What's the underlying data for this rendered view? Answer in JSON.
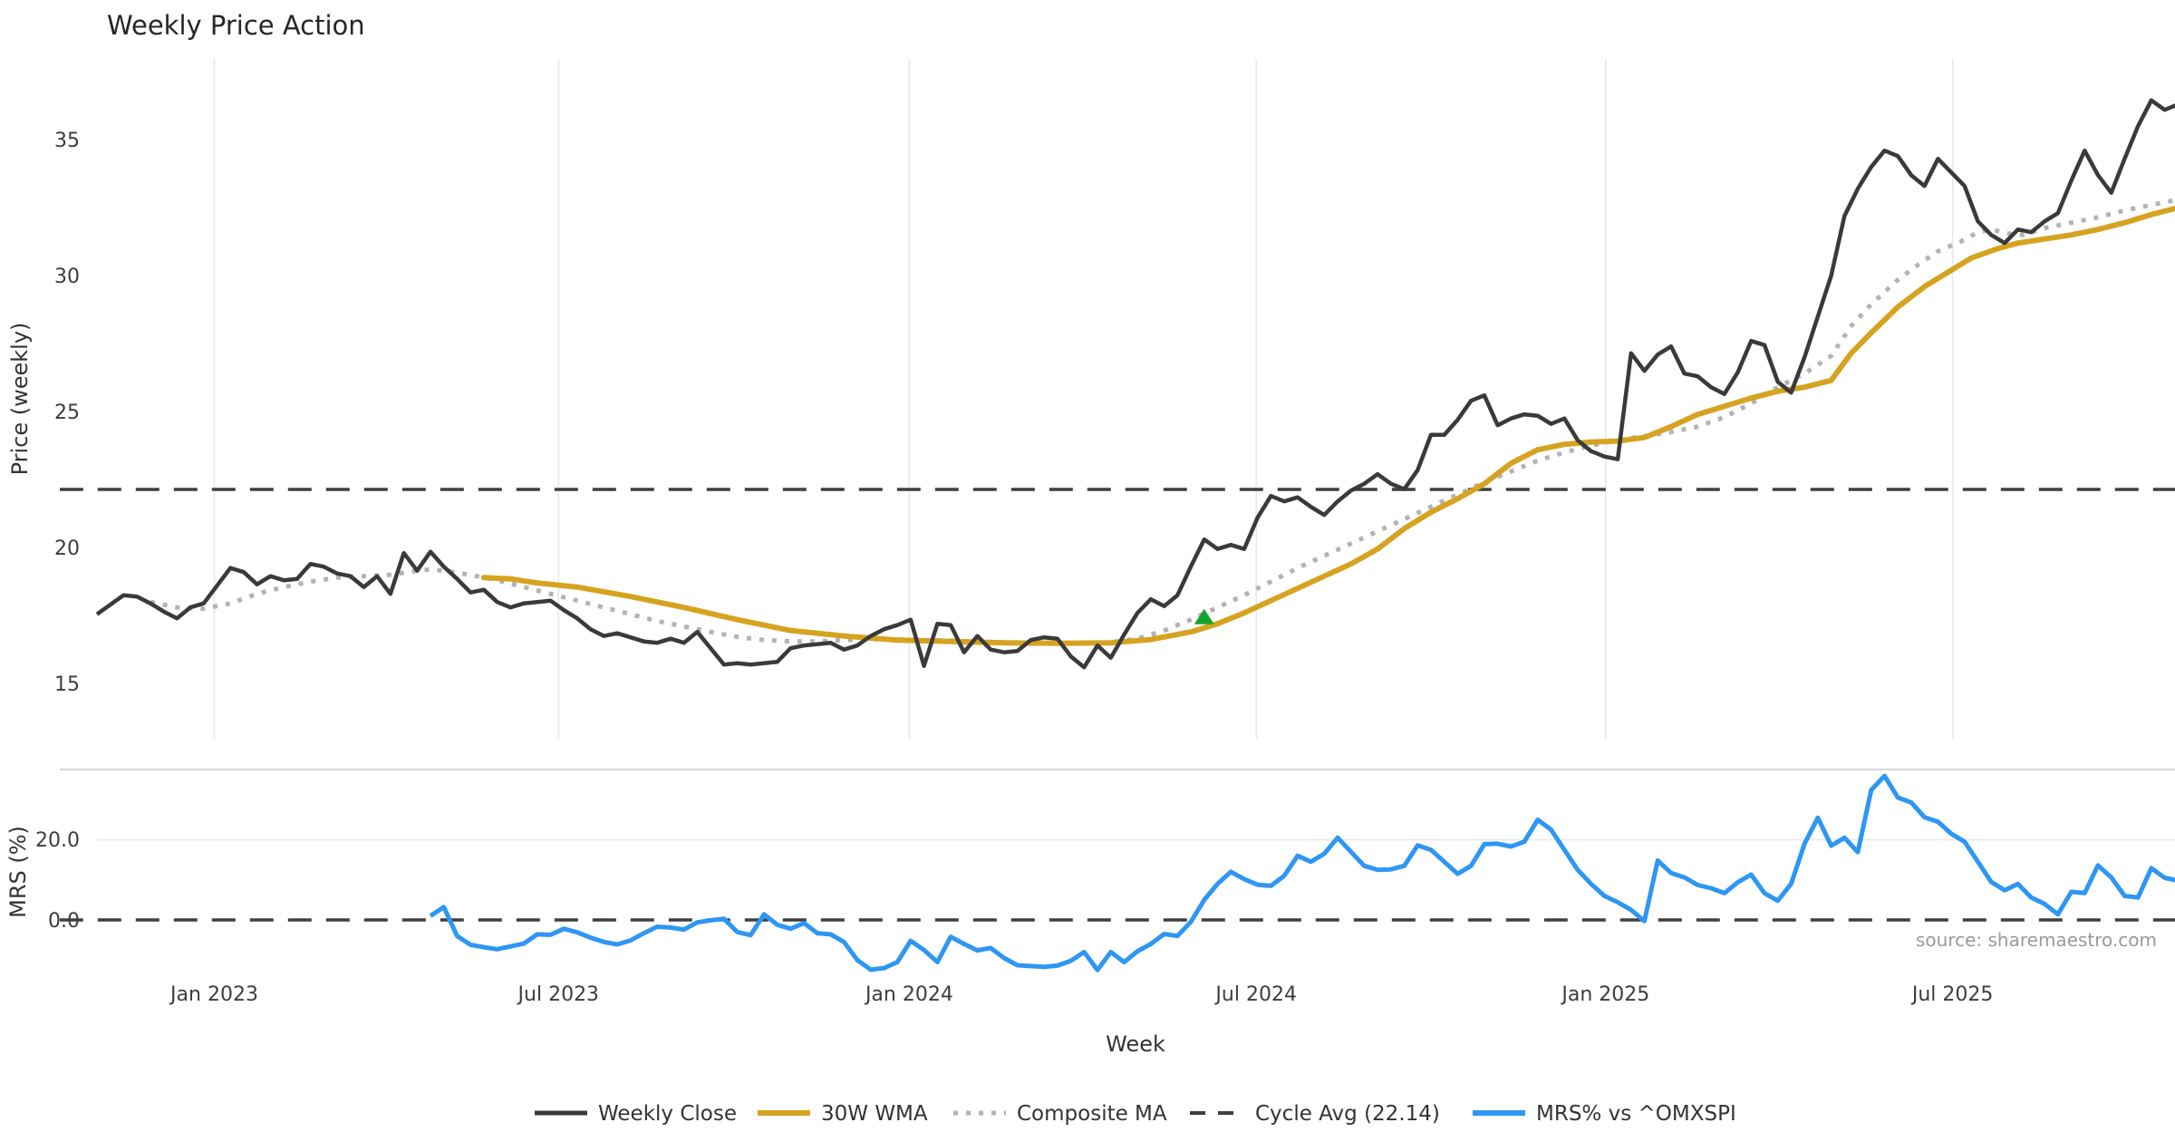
{
  "title": "Weekly Price Action",
  "xlabel": "Week",
  "source": "source: sharemaestro.com",
  "price_panel": {
    "ylabel": "Price (weekly)",
    "yticks": [
      {
        "label": "35",
        "value": 35
      },
      {
        "label": "30",
        "value": 30
      },
      {
        "label": "25",
        "value": 25
      },
      {
        "label": "20",
        "value": 20
      },
      {
        "label": "15",
        "value": 15
      }
    ]
  },
  "mrs_panel": {
    "ylabel": "MRS (%)",
    "yticks": [
      {
        "label": "20.0",
        "value": 20
      },
      {
        "label": "0.0",
        "value": 0
      }
    ]
  },
  "chart_data": {
    "type": "line",
    "x_unit": "week_index_from_2022-10-31",
    "x_ticks": [
      {
        "label": "Jan 2023",
        "week": 8.8
      },
      {
        "label": "Jul 2023",
        "week": 34.6
      },
      {
        "label": "Jan 2024",
        "week": 60.9
      },
      {
        "label": "Jul 2024",
        "week": 86.9
      },
      {
        "label": "Jan 2025",
        "week": 113.1
      },
      {
        "label": "Jul 2025",
        "week": 139.1
      }
    ],
    "price_axis_range": [
      14.0,
      38.0
    ],
    "mrs_axis_range": [
      -18,
      38
    ],
    "cycle_avg_value": 22.14,
    "marker": {
      "name": "buy-signal",
      "week": 83,
      "value": 17.45,
      "color": "#16A52C",
      "shape": "triangle-up"
    },
    "series": [
      {
        "name": "Weekly Close",
        "panel": "price",
        "color": "#3A3A3A",
        "width": 4.5,
        "dash": "",
        "start_week": 0,
        "values": [
          17.55,
          17.9,
          18.25,
          18.2,
          17.95,
          17.65,
          17.4,
          17.8,
          17.95,
          18.6,
          19.25,
          19.1,
          18.65,
          18.95,
          18.8,
          18.85,
          19.4,
          19.3,
          19.05,
          18.95,
          18.55,
          18.95,
          18.3,
          19.8,
          19.15,
          19.85,
          19.3,
          18.85,
          18.35,
          18.45,
          18.0,
          17.8,
          17.95,
          18.0,
          18.05,
          17.7,
          17.4,
          17.0,
          16.75,
          16.85,
          16.7,
          16.55,
          16.5,
          16.65,
          16.5,
          16.9,
          16.3,
          15.7,
          15.75,
          15.7,
          15.75,
          15.8,
          16.3,
          16.4,
          16.45,
          16.5,
          16.25,
          16.4,
          16.75,
          17.0,
          17.15,
          17.35,
          15.65,
          17.2,
          17.15,
          16.15,
          16.75,
          16.25,
          16.15,
          16.2,
          16.6,
          16.7,
          16.65,
          16.0,
          15.6,
          16.4,
          15.95,
          16.8,
          17.6,
          18.1,
          17.85,
          18.25,
          19.3,
          20.3,
          19.95,
          20.1,
          19.95,
          21.1,
          21.9,
          21.7,
          21.85,
          21.5,
          21.2,
          21.7,
          22.1,
          22.35,
          22.7,
          22.35,
          22.15,
          22.85,
          24.15,
          24.15,
          24.7,
          25.4,
          25.6,
          24.5,
          24.75,
          24.9,
          24.85,
          24.55,
          24.75,
          23.95,
          23.55,
          23.35,
          23.25,
          27.15,
          26.5,
          27.1,
          27.4,
          26.4,
          26.3,
          25.9,
          25.65,
          26.45,
          27.6,
          27.45,
          26.1,
          25.7,
          27.0,
          28.5,
          30.0,
          32.2,
          33.2,
          34.0,
          34.6,
          34.4,
          33.7,
          33.3,
          34.3,
          33.8,
          33.3,
          32.0,
          31.5,
          31.2,
          31.7,
          31.6,
          32.0,
          32.3,
          33.5,
          34.6,
          33.7,
          33.05,
          34.3,
          35.5,
          36.45,
          36.1,
          36.3
        ]
      },
      {
        "name": "30W WMA",
        "panel": "price",
        "color": "#D6A321",
        "width": 6,
        "dash": "",
        "points": [
          [
            29,
            18.9
          ],
          [
            31,
            18.85
          ],
          [
            33,
            18.7
          ],
          [
            36,
            18.55
          ],
          [
            40,
            18.2
          ],
          [
            44,
            17.8
          ],
          [
            48,
            17.35
          ],
          [
            52,
            16.95
          ],
          [
            56,
            16.75
          ],
          [
            60,
            16.6
          ],
          [
            64,
            16.55
          ],
          [
            68,
            16.5
          ],
          [
            72,
            16.48
          ],
          [
            76,
            16.5
          ],
          [
            79,
            16.62
          ],
          [
            82,
            16.9
          ],
          [
            84,
            17.2
          ],
          [
            86,
            17.6
          ],
          [
            88,
            18.05
          ],
          [
            90,
            18.5
          ],
          [
            92,
            18.95
          ],
          [
            94,
            19.4
          ],
          [
            96,
            19.95
          ],
          [
            98,
            20.7
          ],
          [
            100,
            21.3
          ],
          [
            102,
            21.8
          ],
          [
            104,
            22.35
          ],
          [
            106,
            23.1
          ],
          [
            108,
            23.6
          ],
          [
            110,
            23.8
          ],
          [
            112,
            23.88
          ],
          [
            114,
            23.92
          ],
          [
            116,
            24.05
          ],
          [
            118,
            24.45
          ],
          [
            120,
            24.9
          ],
          [
            122,
            25.2
          ],
          [
            124,
            25.5
          ],
          [
            126,
            25.75
          ],
          [
            128,
            25.9
          ],
          [
            130,
            26.15
          ],
          [
            131.5,
            27.15
          ],
          [
            133,
            27.9
          ],
          [
            135,
            28.85
          ],
          [
            137,
            29.6
          ],
          [
            138.5,
            30.05
          ],
          [
            140.5,
            30.65
          ],
          [
            142.5,
            31.0
          ],
          [
            144,
            31.2
          ],
          [
            146,
            31.35
          ],
          [
            148,
            31.5
          ],
          [
            150,
            31.7
          ],
          [
            152,
            31.95
          ],
          [
            154,
            32.25
          ],
          [
            156,
            32.5
          ]
        ]
      },
      {
        "name": "Composite MA",
        "panel": "price",
        "color": "#B3B3B3",
        "width": 5,
        "dash": "5 9",
        "points": [
          [
            4,
            18.0
          ],
          [
            6,
            17.8
          ],
          [
            8,
            17.75
          ],
          [
            10,
            17.95
          ],
          [
            12,
            18.3
          ],
          [
            14,
            18.55
          ],
          [
            16,
            18.75
          ],
          [
            18,
            18.9
          ],
          [
            20,
            18.95
          ],
          [
            22,
            19.0
          ],
          [
            24,
            19.15
          ],
          [
            25,
            19.2
          ],
          [
            26,
            19.15
          ],
          [
            28,
            19.0
          ],
          [
            30,
            18.8
          ],
          [
            32,
            18.55
          ],
          [
            34,
            18.3
          ],
          [
            36,
            18.05
          ],
          [
            38,
            17.8
          ],
          [
            40,
            17.55
          ],
          [
            42,
            17.3
          ],
          [
            44,
            17.1
          ],
          [
            46,
            16.9
          ],
          [
            48,
            16.72
          ],
          [
            50,
            16.6
          ],
          [
            52,
            16.55
          ],
          [
            54,
            16.55
          ],
          [
            56,
            16.6
          ],
          [
            58,
            16.63
          ],
          [
            60,
            16.63
          ],
          [
            62,
            16.6
          ],
          [
            64,
            16.58
          ],
          [
            66,
            16.55
          ],
          [
            68,
            16.52
          ],
          [
            70,
            16.5
          ],
          [
            72,
            16.48
          ],
          [
            74,
            16.47
          ],
          [
            76,
            16.52
          ],
          [
            78,
            16.65
          ],
          [
            80,
            16.95
          ],
          [
            82,
            17.35
          ],
          [
            84,
            17.8
          ],
          [
            86,
            18.25
          ],
          [
            88,
            18.75
          ],
          [
            90,
            19.25
          ],
          [
            92,
            19.7
          ],
          [
            94,
            20.15
          ],
          [
            96,
            20.6
          ],
          [
            98,
            21.05
          ],
          [
            100,
            21.5
          ],
          [
            102,
            21.95
          ],
          [
            104,
            22.4
          ],
          [
            106,
            22.8
          ],
          [
            108,
            23.2
          ],
          [
            110,
            23.5
          ],
          [
            112,
            23.75
          ],
          [
            114,
            23.95
          ],
          [
            116,
            24.1
          ],
          [
            118,
            24.25
          ],
          [
            120,
            24.45
          ],
          [
            122,
            24.8
          ],
          [
            124,
            25.3
          ],
          [
            126,
            25.9
          ],
          [
            128,
            26.4
          ],
          [
            130,
            27.05
          ],
          [
            131.5,
            28.15
          ],
          [
            133,
            28.95
          ],
          [
            135,
            29.85
          ],
          [
            136.5,
            30.4
          ],
          [
            138,
            30.9
          ],
          [
            139.7,
            31.25
          ],
          [
            141,
            31.6
          ],
          [
            142,
            31.7
          ],
          [
            143.3,
            31.55
          ],
          [
            144.4,
            31.5
          ],
          [
            146,
            31.75
          ],
          [
            148,
            31.95
          ],
          [
            150,
            32.15
          ],
          [
            152,
            32.4
          ],
          [
            154,
            32.6
          ],
          [
            156,
            32.8
          ]
        ]
      },
      {
        "name": "Cycle Avg (22.14)",
        "panel": "price",
        "color": "#3F3F3F",
        "width": 3.5,
        "dash": "26 16",
        "points": [
          [
            -2.8,
            22.14
          ],
          [
            156.5,
            22.14
          ]
        ]
      },
      {
        "name": "MRS% vs ^OMXSPI",
        "panel": "mrs",
        "color": "#2E96F3",
        "width": 5,
        "dash": "",
        "start_week": 25,
        "values": [
          1.0,
          3.2,
          -4.0,
          -6.2,
          -6.8,
          -7.3,
          -6.6,
          -5.9,
          -3.6,
          -3.7,
          -2.2,
          -3.1,
          -4.4,
          -5.5,
          -6.1,
          -5.1,
          -3.3,
          -1.7,
          -1.9,
          -2.4,
          -0.6,
          -0.1,
          0.3,
          -3.0,
          -3.8,
          1.4,
          -1.2,
          -2.2,
          -0.8,
          -3.3,
          -3.6,
          -5.5,
          -10.0,
          -12.4,
          -12.0,
          -10.5,
          -5.2,
          -7.5,
          -10.5,
          -4.2,
          -6.0,
          -7.6,
          -7.0,
          -9.5,
          -11.3,
          -11.5,
          -11.7,
          -11.4,
          -10.2,
          -8.0,
          -12.5,
          -8.0,
          -10.5,
          -7.8,
          -6.0,
          -3.5,
          -4.0,
          -0.5,
          5.0,
          9.0,
          12.0,
          10.2,
          8.8,
          8.5,
          11.0,
          16.0,
          14.5,
          16.5,
          20.5,
          17.0,
          13.5,
          12.5,
          12.6,
          13.5,
          18.6,
          17.5,
          14.5,
          11.5,
          13.5,
          18.9,
          19.0,
          18.3,
          19.5,
          25.0,
          22.5,
          17.5,
          12.5,
          9.0,
          6.0,
          4.4,
          2.5,
          -0.3,
          14.8,
          11.7,
          10.6,
          8.7,
          7.9,
          6.7,
          9.4,
          11.3,
          6.7,
          4.8,
          9.0,
          19.0,
          25.5,
          18.5,
          20.5,
          16.9,
          32.4,
          35.9,
          30.5,
          29.3,
          25.6,
          24.5,
          21.5,
          19.5,
          14.5,
          9.5,
          7.4,
          9.0,
          5.6,
          4.0,
          1.4,
          7.0,
          6.7,
          13.6,
          10.6,
          6.0,
          5.6,
          12.9,
          10.5,
          9.8
        ]
      },
      {
        "name": "zero-line",
        "panel": "mrs",
        "color": "#3F3F3F",
        "width": 3.5,
        "dash": "26 16",
        "points": [
          [
            -2.8,
            0
          ],
          [
            156.5,
            0
          ]
        ]
      }
    ]
  }
}
